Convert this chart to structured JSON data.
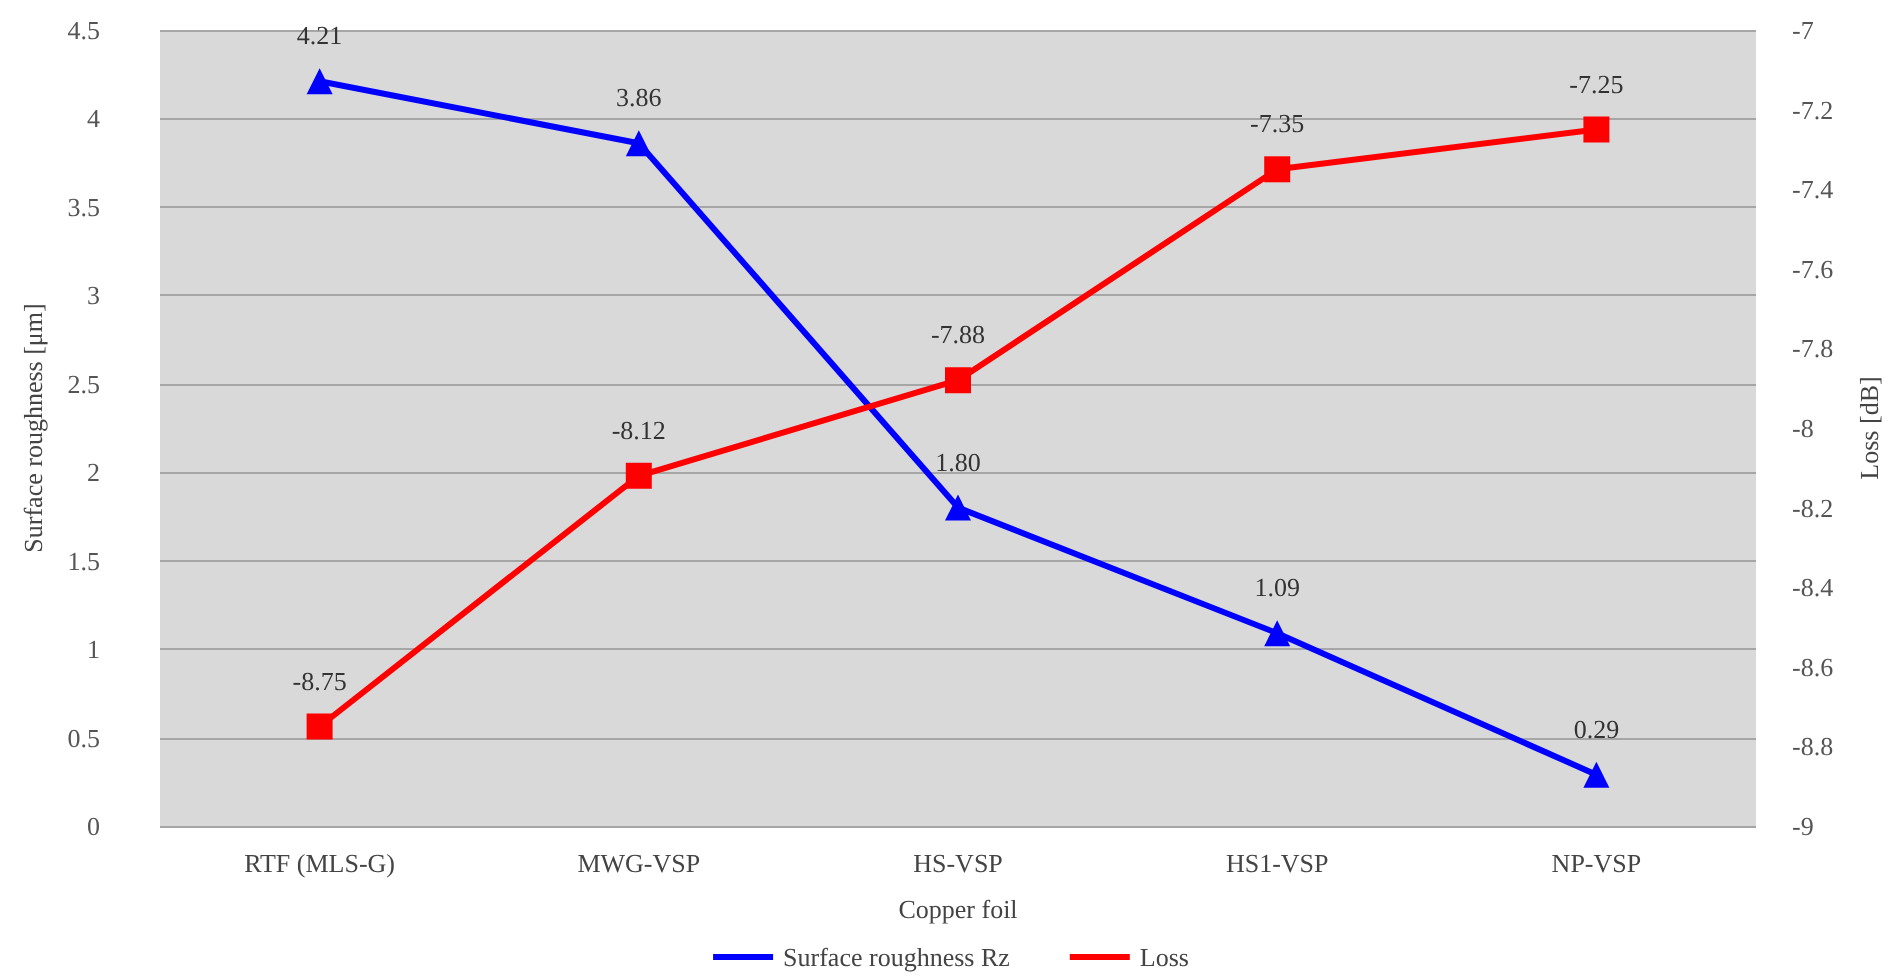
{
  "chart_data": {
    "type": "line",
    "xlabel": "Copper foil",
    "ylabel": "Surface roughness [μm]",
    "y2label": "Loss [dB]",
    "categories": [
      "RTF (MLS-G)",
      "MWG-VSP",
      "HS-VSP",
      "HS1-VSP",
      "NP-VSP"
    ],
    "series": [
      {
        "name": "Surface roughness Rz",
        "color": "#0000ff",
        "marker": "triangle",
        "values": [
          4.21,
          3.86,
          1.8,
          1.09,
          0.29
        ],
        "value_labels": [
          "4.21",
          "3.86",
          "1.80",
          "1.09",
          "0.29"
        ]
      },
      {
        "name": "Loss",
        "color": "#ff0000",
        "marker": "square",
        "axis": "y2",
        "values": [
          -8.75,
          -8.12,
          -7.88,
          -7.35,
          -7.25
        ],
        "value_labels": [
          "-8.75",
          "-8.12",
          "-7.88",
          "-7.35",
          "-7.25"
        ]
      }
    ],
    "ylim": [
      0,
      4.5
    ],
    "yticks": [
      0,
      0.5,
      1,
      1.5,
      2,
      2.5,
      3,
      3.5,
      4,
      4.5
    ],
    "y2lim": [
      -9,
      -7
    ],
    "y2ticks": [
      -9,
      -8.8,
      -8.6,
      -8.4,
      -8.2,
      -8,
      -7.8,
      -7.6,
      -7.4,
      -7.2,
      -7
    ],
    "grid": "y",
    "legend": "bottom",
    "line_style": "solid"
  }
}
